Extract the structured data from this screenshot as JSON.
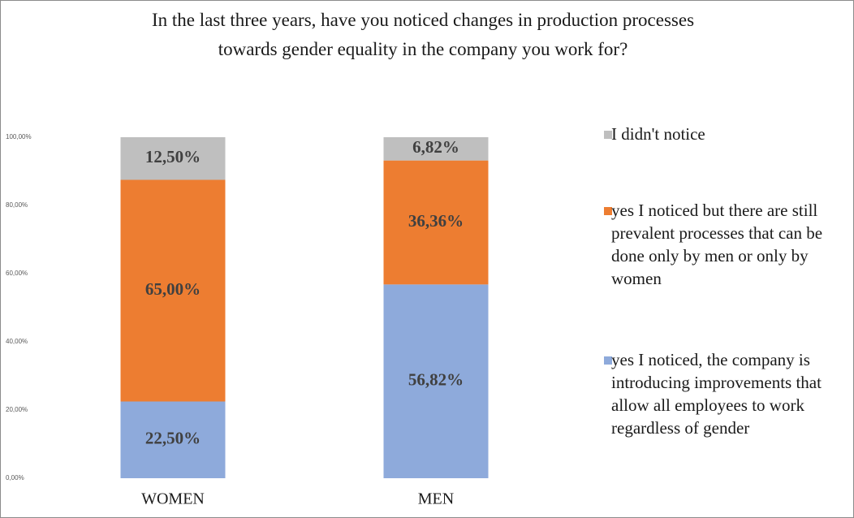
{
  "chart_data": {
    "type": "stacked_bar",
    "title": "In the last three years, have you noticed changes in production processes towards gender equality in the company you work for?",
    "categories": [
      "WOMEN",
      "MEN"
    ],
    "series": [
      {
        "name": "yes I noticed, the company is introducing improvements that allow all employees to work regardless of gender",
        "color": "#8eaadb",
        "values": [
          22.5,
          56.82
        ],
        "value_labels": [
          "22,50%",
          "56,82%"
        ]
      },
      {
        "name": "yes I noticed but there are still prevalent processes that can be done only by men or only by women",
        "color": "#ed7d31",
        "values": [
          65,
          36.36
        ],
        "value_labels": [
          "65,00%",
          "36,36%"
        ]
      },
      {
        "name": "I didn't notice",
        "color": "#bfbfbf",
        "values": [
          12.5,
          6.82
        ],
        "value_labels": [
          "12,50%",
          "6,82%"
        ]
      }
    ],
    "ylim": [
      0,
      100
    ],
    "yticks": [
      {
        "value": 0,
        "label": "0,00%"
      },
      {
        "value": 20,
        "label": "20,00%"
      },
      {
        "value": 40,
        "label": "40,00%"
      },
      {
        "value": 60,
        "label": "60,00%"
      },
      {
        "value": 80,
        "label": "80,00%"
      },
      {
        "value": 100,
        "label": "100,00%"
      }
    ],
    "legend": "right"
  }
}
